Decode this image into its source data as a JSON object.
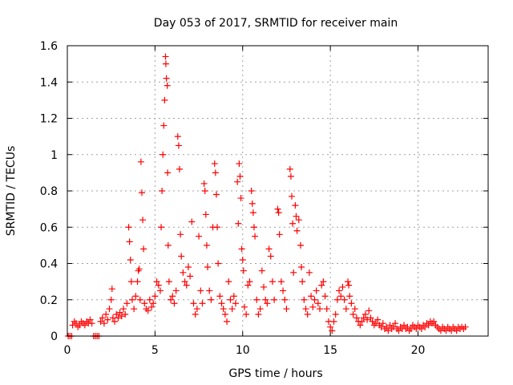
{
  "chart_data": {
    "type": "scatter",
    "title": "Day 053 of 2017, SRMTID for receiver main",
    "xlabel": "GPS time / hours",
    "ylabel": "SRMTID / TECUs",
    "xlim": [
      0,
      24
    ],
    "ylim": [
      0,
      1.6
    ],
    "x_ticks": [
      0,
      5,
      10,
      15,
      20
    ],
    "x_tick_labels": [
      "0",
      "5",
      "10",
      "15",
      "20"
    ],
    "y_ticks": [
      0,
      0.2,
      0.4,
      0.6,
      0.8,
      1.0,
      1.2,
      1.4,
      1.6
    ],
    "y_tick_labels": [
      "0",
      "0.2",
      "0.4",
      "0.6",
      "0.8",
      "1",
      "1.2",
      "1.4",
      "1.6"
    ],
    "grid": true,
    "marker": "plus",
    "color": "#ff0000",
    "series": [
      {
        "name": "SRMTID",
        "points": [
          [
            0.05,
            0.0
          ],
          [
            0.15,
            0.0
          ],
          [
            0.25,
            0.0
          ],
          [
            0.3,
            0.06
          ],
          [
            0.4,
            0.08
          ],
          [
            0.5,
            0.07
          ],
          [
            0.6,
            0.05
          ],
          [
            0.7,
            0.06
          ],
          [
            0.8,
            0.08
          ],
          [
            0.9,
            0.07
          ],
          [
            1.0,
            0.06
          ],
          [
            1.1,
            0.08
          ],
          [
            1.2,
            0.07
          ],
          [
            1.3,
            0.09
          ],
          [
            1.4,
            0.07
          ],
          [
            1.5,
            0.0
          ],
          [
            1.6,
            0.0
          ],
          [
            1.7,
            0.0
          ],
          [
            1.8,
            0.0
          ],
          [
            1.9,
            0.08
          ],
          [
            2.0,
            0.1
          ],
          [
            2.1,
            0.07
          ],
          [
            2.2,
            0.12
          ],
          [
            2.3,
            0.09
          ],
          [
            2.4,
            0.15
          ],
          [
            2.5,
            0.2
          ],
          [
            2.55,
            0.26
          ],
          [
            2.6,
            0.1
          ],
          [
            2.7,
            0.08
          ],
          [
            2.8,
            0.12
          ],
          [
            2.9,
            0.1
          ],
          [
            3.0,
            0.13
          ],
          [
            3.1,
            0.11
          ],
          [
            3.2,
            0.15
          ],
          [
            3.3,
            0.12
          ],
          [
            3.4,
            0.18
          ],
          [
            3.5,
            0.6
          ],
          [
            3.55,
            0.52
          ],
          [
            3.6,
            0.42
          ],
          [
            3.65,
            0.3
          ],
          [
            3.7,
            0.2
          ],
          [
            3.8,
            0.15
          ],
          [
            3.9,
            0.22
          ],
          [
            4.0,
            0.3
          ],
          [
            4.05,
            0.36
          ],
          [
            4.1,
            0.37
          ],
          [
            4.15,
            0.2
          ],
          [
            4.2,
            0.96
          ],
          [
            4.25,
            0.79
          ],
          [
            4.3,
            0.64
          ],
          [
            4.35,
            0.48
          ],
          [
            4.4,
            0.18
          ],
          [
            4.5,
            0.15
          ],
          [
            4.6,
            0.14
          ],
          [
            4.7,
            0.2
          ],
          [
            4.8,
            0.16
          ],
          [
            4.9,
            0.18
          ],
          [
            5.0,
            0.22
          ],
          [
            5.1,
            0.3
          ],
          [
            5.2,
            0.28
          ],
          [
            5.3,
            0.25
          ],
          [
            5.35,
            0.6
          ],
          [
            5.4,
            0.8
          ],
          [
            5.45,
            1.0
          ],
          [
            5.5,
            1.16
          ],
          [
            5.55,
            1.3
          ],
          [
            5.6,
            1.54
          ],
          [
            5.62,
            1.5
          ],
          [
            5.65,
            1.42
          ],
          [
            5.7,
            1.38
          ],
          [
            5.72,
            0.9
          ],
          [
            5.75,
            0.5
          ],
          [
            5.8,
            0.3
          ],
          [
            5.9,
            0.2
          ],
          [
            6.0,
            0.22
          ],
          [
            6.1,
            0.18
          ],
          [
            6.2,
            0.25
          ],
          [
            6.3,
            1.1
          ],
          [
            6.35,
            1.05
          ],
          [
            6.4,
            0.92
          ],
          [
            6.45,
            0.56
          ],
          [
            6.5,
            0.44
          ],
          [
            6.6,
            0.35
          ],
          [
            6.7,
            0.3
          ],
          [
            6.8,
            0.28
          ],
          [
            6.9,
            0.38
          ],
          [
            7.0,
            0.33
          ],
          [
            7.1,
            0.63
          ],
          [
            7.2,
            0.18
          ],
          [
            7.3,
            0.12
          ],
          [
            7.4,
            0.15
          ],
          [
            7.5,
            0.55
          ],
          [
            7.6,
            0.25
          ],
          [
            7.7,
            0.18
          ],
          [
            7.8,
            0.84
          ],
          [
            7.85,
            0.8
          ],
          [
            7.9,
            0.67
          ],
          [
            7.95,
            0.5
          ],
          [
            8.0,
            0.38
          ],
          [
            8.1,
            0.25
          ],
          [
            8.2,
            0.2
          ],
          [
            8.3,
            0.6
          ],
          [
            8.4,
            0.95
          ],
          [
            8.45,
            0.9
          ],
          [
            8.5,
            0.78
          ],
          [
            8.55,
            0.6
          ],
          [
            8.6,
            0.4
          ],
          [
            8.7,
            0.22
          ],
          [
            8.8,
            0.18
          ],
          [
            8.9,
            0.15
          ],
          [
            9.0,
            0.12
          ],
          [
            9.1,
            0.08
          ],
          [
            9.2,
            0.3
          ],
          [
            9.3,
            0.2
          ],
          [
            9.4,
            0.15
          ],
          [
            9.5,
            0.22
          ],
          [
            9.6,
            0.18
          ],
          [
            9.7,
            0.85
          ],
          [
            9.75,
            0.62
          ],
          [
            9.8,
            0.95
          ],
          [
            9.85,
            0.88
          ],
          [
            9.9,
            0.76
          ],
          [
            9.95,
            0.48
          ],
          [
            10.0,
            0.42
          ],
          [
            10.05,
            0.36
          ],
          [
            10.1,
            0.16
          ],
          [
            10.2,
            0.12
          ],
          [
            10.3,
            0.28
          ],
          [
            10.4,
            0.3
          ],
          [
            10.5,
            0.8
          ],
          [
            10.55,
            0.73
          ],
          [
            10.6,
            0.68
          ],
          [
            10.65,
            0.6
          ],
          [
            10.7,
            0.55
          ],
          [
            10.8,
            0.2
          ],
          [
            10.9,
            0.12
          ],
          [
            11.0,
            0.15
          ],
          [
            11.1,
            0.36
          ],
          [
            11.2,
            0.27
          ],
          [
            11.3,
            0.2
          ],
          [
            11.4,
            0.18
          ],
          [
            11.5,
            0.48
          ],
          [
            11.6,
            0.44
          ],
          [
            11.7,
            0.3
          ],
          [
            11.8,
            0.2
          ],
          [
            12.0,
            0.7
          ],
          [
            12.05,
            0.68
          ],
          [
            12.1,
            0.56
          ],
          [
            12.2,
            0.3
          ],
          [
            12.3,
            0.25
          ],
          [
            12.4,
            0.2
          ],
          [
            12.5,
            0.15
          ],
          [
            12.7,
            0.92
          ],
          [
            12.75,
            0.88
          ],
          [
            12.8,
            0.77
          ],
          [
            12.85,
            0.62
          ],
          [
            12.9,
            0.35
          ],
          [
            13.0,
            0.72
          ],
          [
            13.05,
            0.66
          ],
          [
            13.1,
            0.58
          ],
          [
            13.2,
            0.64
          ],
          [
            13.3,
            0.5
          ],
          [
            13.35,
            0.38
          ],
          [
            13.4,
            0.3
          ],
          [
            13.5,
            0.2
          ],
          [
            13.6,
            0.15
          ],
          [
            13.7,
            0.12
          ],
          [
            13.8,
            0.35
          ],
          [
            13.9,
            0.22
          ],
          [
            14.0,
            0.16
          ],
          [
            14.1,
            0.2
          ],
          [
            14.2,
            0.25
          ],
          [
            14.3,
            0.18
          ],
          [
            14.4,
            0.15
          ],
          [
            14.5,
            0.28
          ],
          [
            14.6,
            0.3
          ],
          [
            14.7,
            0.22
          ],
          [
            14.8,
            0.15
          ],
          [
            14.9,
            0.08
          ],
          [
            15.0,
            0.05
          ],
          [
            15.1,
            0.03
          ],
          [
            15.2,
            0.08
          ],
          [
            15.3,
            0.12
          ],
          [
            15.4,
            0.2
          ],
          [
            15.5,
            0.25
          ],
          [
            15.6,
            0.22
          ],
          [
            15.7,
            0.27
          ],
          [
            15.8,
            0.2
          ],
          [
            15.9,
            0.15
          ],
          [
            16.0,
            0.3
          ],
          [
            16.05,
            0.28
          ],
          [
            16.1,
            0.22
          ],
          [
            16.2,
            0.18
          ],
          [
            16.3,
            0.12
          ],
          [
            16.4,
            0.15
          ],
          [
            16.5,
            0.1
          ],
          [
            16.6,
            0.08
          ],
          [
            16.7,
            0.06
          ],
          [
            16.8,
            0.08
          ],
          [
            16.9,
            0.1
          ],
          [
            17.0,
            0.12
          ],
          [
            17.1,
            0.09
          ],
          [
            17.2,
            0.14
          ],
          [
            17.3,
            0.1
          ],
          [
            17.4,
            0.08
          ],
          [
            17.5,
            0.06
          ],
          [
            17.6,
            0.07
          ],
          [
            17.7,
            0.09
          ],
          [
            17.8,
            0.06
          ],
          [
            17.9,
            0.05
          ],
          [
            18.0,
            0.07
          ],
          [
            18.1,
            0.04
          ],
          [
            18.2,
            0.05
          ],
          [
            18.3,
            0.03
          ],
          [
            18.4,
            0.06
          ],
          [
            18.5,
            0.04
          ],
          [
            18.6,
            0.05
          ],
          [
            18.7,
            0.07
          ],
          [
            18.8,
            0.04
          ],
          [
            18.9,
            0.03
          ],
          [
            19.0,
            0.05
          ],
          [
            19.1,
            0.04
          ],
          [
            19.2,
            0.06
          ],
          [
            19.3,
            0.04
          ],
          [
            19.4,
            0.05
          ],
          [
            19.5,
            0.03
          ],
          [
            19.6,
            0.04
          ],
          [
            19.7,
            0.06
          ],
          [
            19.8,
            0.05
          ],
          [
            19.9,
            0.04
          ],
          [
            20.0,
            0.06
          ],
          [
            20.1,
            0.05
          ],
          [
            20.2,
            0.04
          ],
          [
            20.3,
            0.06
          ],
          [
            20.4,
            0.05
          ],
          [
            20.5,
            0.07
          ],
          [
            20.6,
            0.06
          ],
          [
            20.7,
            0.08
          ],
          [
            20.8,
            0.07
          ],
          [
            20.9,
            0.08
          ],
          [
            21.0,
            0.06
          ],
          [
            21.1,
            0.05
          ],
          [
            21.2,
            0.04
          ],
          [
            21.3,
            0.03
          ],
          [
            21.4,
            0.05
          ],
          [
            21.5,
            0.04
          ],
          [
            21.6,
            0.03
          ],
          [
            21.7,
            0.05
          ],
          [
            21.8,
            0.04
          ],
          [
            21.9,
            0.03
          ],
          [
            22.0,
            0.05
          ],
          [
            22.1,
            0.04
          ],
          [
            22.2,
            0.03
          ],
          [
            22.3,
            0.05
          ],
          [
            22.4,
            0.04
          ],
          [
            22.5,
            0.05
          ],
          [
            22.6,
            0.04
          ],
          [
            22.7,
            0.05
          ]
        ]
      }
    ]
  }
}
